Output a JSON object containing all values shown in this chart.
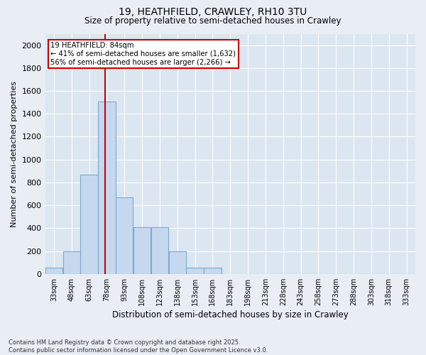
{
  "title_line1": "19, HEATHFIELD, CRAWLEY, RH10 3TU",
  "title_line2": "Size of property relative to semi-detached houses in Crawley",
  "xlabel": "Distribution of semi-detached houses by size in Crawley",
  "ylabel": "Number of semi-detached properties",
  "footer": "Contains HM Land Registry data © Crown copyright and database right 2025.\nContains public sector information licensed under the Open Government Licence v3.0.",
  "bar_color": "#c5d8ee",
  "bar_edge_color": "#7aaad0",
  "vline_color": "#cc0000",
  "vline_x": 84,
  "categories": [
    "33sqm",
    "48sqm",
    "63sqm",
    "78sqm",
    "93sqm",
    "108sqm",
    "123sqm",
    "138sqm",
    "153sqm",
    "168sqm",
    "183sqm",
    "198sqm",
    "213sqm",
    "228sqm",
    "243sqm",
    "258sqm",
    "273sqm",
    "288sqm",
    "303sqm",
    "318sqm",
    "333sqm"
  ],
  "bin_edges": [
    33,
    48,
    63,
    78,
    93,
    108,
    123,
    138,
    153,
    168,
    183,
    198,
    213,
    228,
    243,
    258,
    273,
    288,
    303,
    318,
    333
  ],
  "bin_width": 15,
  "values": [
    55,
    200,
    870,
    1510,
    670,
    410,
    410,
    200,
    55,
    55,
    0,
    0,
    0,
    0,
    0,
    0,
    0,
    0,
    0,
    0,
    0
  ],
  "ylim": [
    0,
    2100
  ],
  "yticks": [
    0,
    200,
    400,
    600,
    800,
    1000,
    1200,
    1400,
    1600,
    1800,
    2000
  ],
  "annotation_title": "19 HEATHFIELD: 84sqm",
  "annotation_line1": "← 41% of semi-detached houses are smaller (1,632)",
  "annotation_line2": "56% of semi-detached houses are larger (2,266) →",
  "annotation_box_color": "#ffffff",
  "annotation_box_edge": "#cc0000",
  "background_color": "#e8eef4",
  "grid_color": "#ffffff",
  "plot_bg": "#dce6f0"
}
